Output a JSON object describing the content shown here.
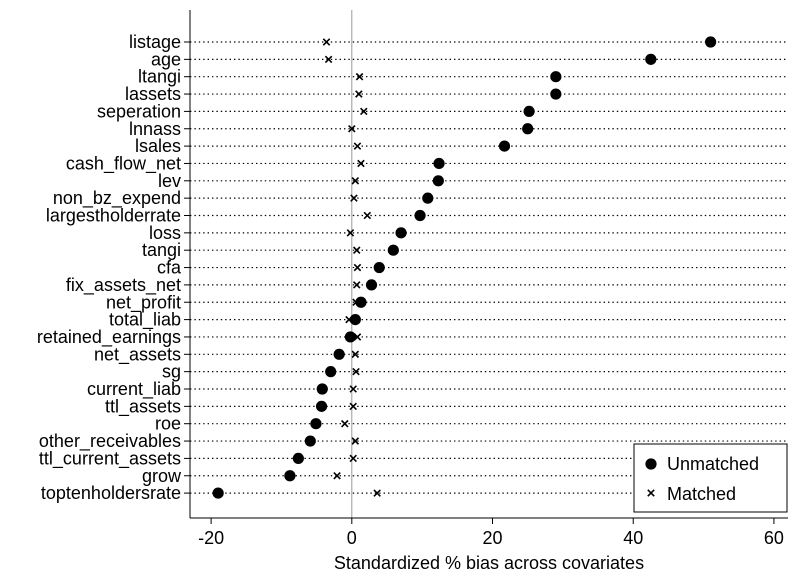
{
  "chart_data": {
    "type": "scatter",
    "xlabel": "Standardized % bias across covariates",
    "xlim": [
      -23,
      62
    ],
    "xticks": [
      -20,
      0,
      20,
      40,
      60
    ],
    "grid": "dotted horizontal lines per covariate",
    "legend_position": "bottom-right",
    "categories": [
      "listage",
      "age",
      "ltangi",
      "lassets",
      "seperation",
      "lnnass",
      "lsales",
      "cash_flow_net",
      "lev",
      "non_bz_expend",
      "largestholderrate",
      "loss",
      "tangi",
      "cfa",
      "fix_assets_net",
      "net_profit",
      "total_liab",
      "retained_earnings",
      "net_assets",
      "sg",
      "current_liab",
      "ttl_assets",
      "roe",
      "other_receivables",
      "ttl_current_assets",
      "grow",
      "toptenholdersrate"
    ],
    "series": [
      {
        "name": "Unmatched",
        "marker": "circle",
        "values": [
          51.0,
          42.5,
          29.0,
          29.0,
          25.2,
          25.0,
          21.7,
          12.4,
          12.3,
          10.8,
          9.7,
          7.0,
          5.9,
          3.9,
          2.8,
          1.3,
          0.5,
          -0.2,
          -1.8,
          -3.0,
          -4.2,
          -4.3,
          -5.1,
          -5.9,
          -7.6,
          -8.8,
          -19.0
        ]
      },
      {
        "name": "Matched",
        "marker": "x",
        "values": [
          -3.6,
          -3.3,
          1.1,
          1.0,
          1.7,
          0.0,
          0.8,
          1.3,
          0.5,
          0.3,
          2.2,
          -0.2,
          0.7,
          0.8,
          0.7,
          0.6,
          -0.4,
          0.8,
          0.5,
          0.6,
          0.2,
          0.2,
          -1.0,
          0.5,
          0.2,
          -2.1,
          3.6
        ]
      }
    ]
  }
}
